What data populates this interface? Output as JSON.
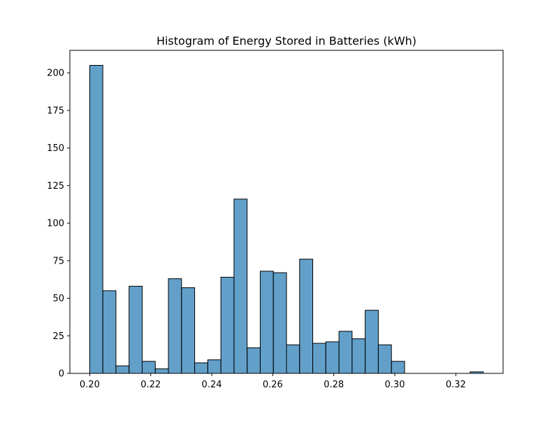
{
  "chart_data": {
    "type": "bar",
    "title": "Histogram of Energy Stored in Batteries (kWh)",
    "xlabel": "",
    "ylabel": "",
    "xlim": [
      0.1935,
      0.3355
    ],
    "ylim": [
      0,
      215
    ],
    "xticks": [
      0.2,
      0.22,
      0.24,
      0.26,
      0.28,
      0.3,
      0.32
    ],
    "xtick_labels": [
      "0.20",
      "0.22",
      "0.24",
      "0.26",
      "0.28",
      "0.30",
      "0.32"
    ],
    "yticks": [
      0,
      25,
      50,
      75,
      100,
      125,
      150,
      175,
      200
    ],
    "ytick_labels": [
      "0",
      "25",
      "50",
      "75",
      "100",
      "125",
      "150",
      "175",
      "200"
    ],
    "bin_start": 0.2,
    "bin_width": 0.0043,
    "counts": [
      205,
      55,
      5,
      58,
      8,
      3,
      63,
      57,
      7,
      9,
      64,
      116,
      17,
      68,
      67,
      19,
      76,
      20,
      21,
      28,
      23,
      42,
      19,
      8,
      0,
      0,
      0,
      0,
      0,
      1
    ],
    "grid": false,
    "legend": "none",
    "colors": {
      "bar_fill": "#1f77b4",
      "bar_opacity": "0.7",
      "bar_edge": "#000000"
    }
  }
}
